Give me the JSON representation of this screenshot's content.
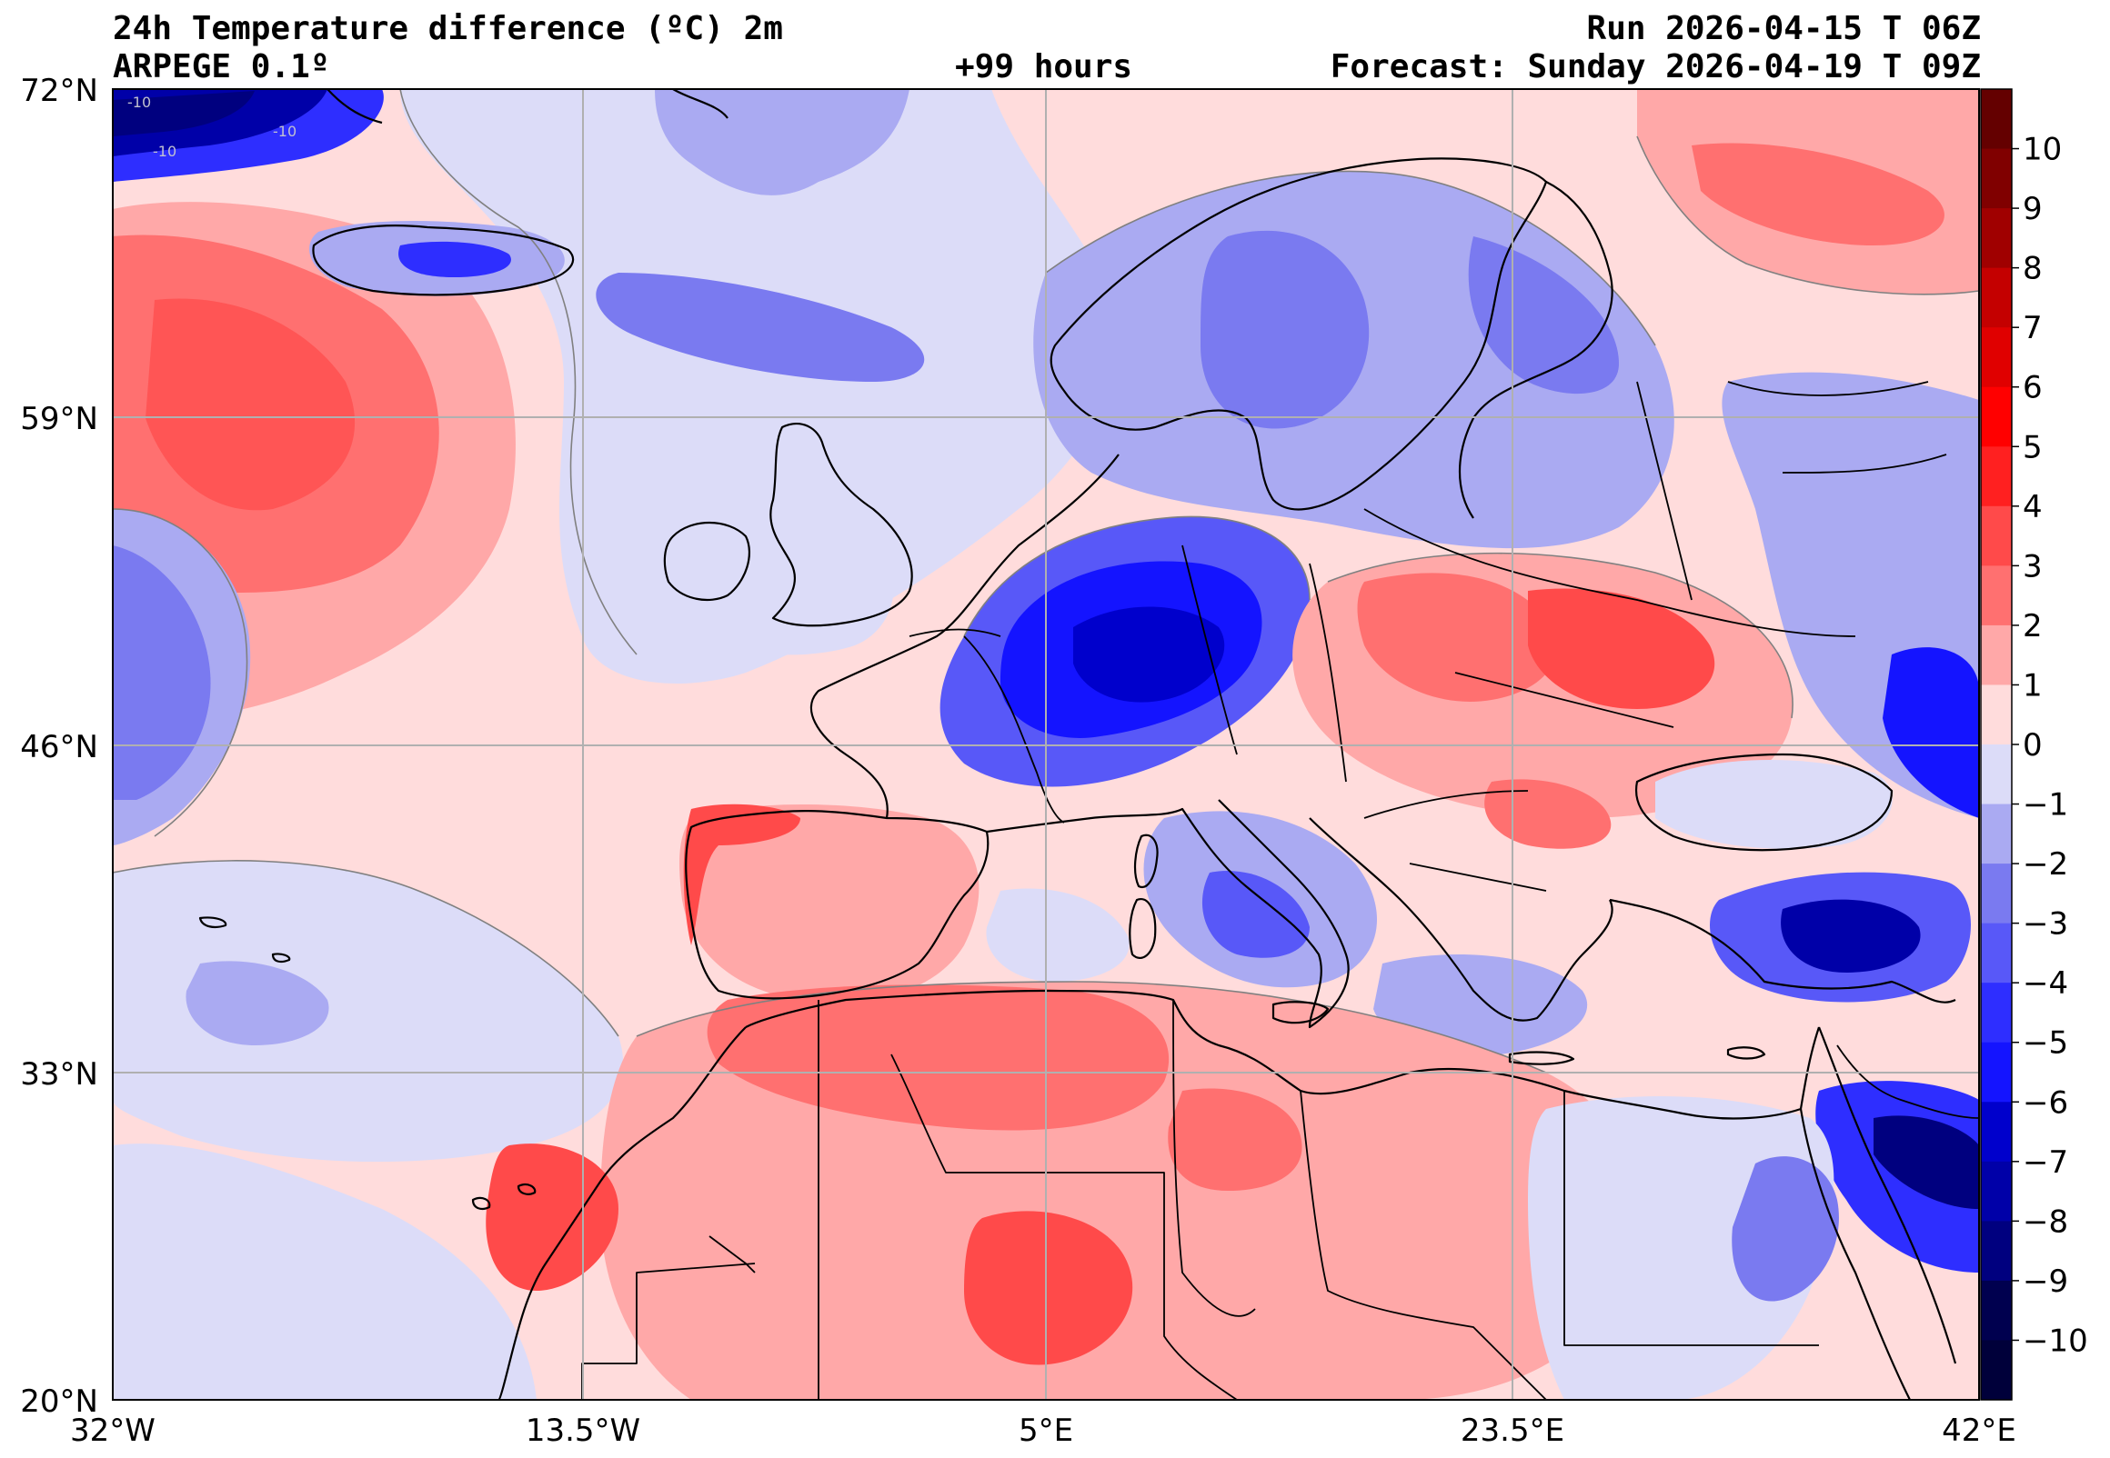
{
  "header": {
    "title_left": "24h Temperature difference (ºC) 2m",
    "model": "ARPEGE 0.1º",
    "lead_time": "+99 hours",
    "run": "Run 2026-04-15 T 06Z",
    "forecast": "Forecast: Sunday 2026-04-19 T 09Z"
  },
  "map": {
    "extent": {
      "lon_min": -32,
      "lon_max": 42,
      "lat_min": 20,
      "lat_max": 72
    },
    "lon_ticks": [
      {
        "value": -32,
        "label": "32°W"
      },
      {
        "value": -13.5,
        "label": "13.5°W"
      },
      {
        "value": 5,
        "label": "5°E"
      },
      {
        "value": 23.5,
        "label": "23.5°E"
      },
      {
        "value": 42,
        "label": "42°E"
      }
    ],
    "lat_ticks": [
      {
        "value": 72,
        "label": "72°N"
      },
      {
        "value": 59,
        "label": "59°N"
      },
      {
        "value": 46,
        "label": "46°N"
      },
      {
        "value": 33,
        "label": "33°N"
      },
      {
        "value": 20,
        "label": "20°N"
      }
    ],
    "contour_labels": [
      "-10",
      "-10",
      "-10"
    ],
    "colors": {
      "neg10": "#00004f",
      "neg9": "#00007f",
      "neg8": "#0000a8",
      "neg7": "#0000cc",
      "neg6": "#1414ff",
      "neg5": "#2e2eff",
      "neg4": "#5858f8",
      "neg3": "#7a7af0",
      "neg2": "#aaaaf2",
      "neg1": "#dcdcf8",
      "pos0": "#ffdcdc",
      "pos1": "#ffa8a8",
      "pos2": "#ff7070",
      "pos3": "#ff4a4a",
      "pos4": "#ff2020",
      "pos5": "#ff0000",
      "pos6": "#e00000",
      "pos7": "#c40000",
      "pos8": "#a00000",
      "pos9": "#800000",
      "pos10": "#640000"
    }
  },
  "colorbar": {
    "min": -11,
    "max": 11,
    "labels": [
      "10",
      "9",
      "8",
      "7",
      "6",
      "5",
      "4",
      "3",
      "2",
      "1",
      "0",
      "−1",
      "−2",
      "−3",
      "−4",
      "−5",
      "−6",
      "−7",
      "−8",
      "−9",
      "−10"
    ],
    "colors": [
      "#640000",
      "#800000",
      "#a00000",
      "#c40000",
      "#e00000",
      "#ff0000",
      "#ff2020",
      "#ff4a4a",
      "#ff7070",
      "#ffa8a8",
      "#ffdcdc",
      "#dcdcf8",
      "#aaaaf2",
      "#7a7af0",
      "#5858f8",
      "#2e2eff",
      "#1414ff",
      "#0000cc",
      "#0000a8",
      "#00007f",
      "#00004f",
      "#00003a"
    ]
  }
}
